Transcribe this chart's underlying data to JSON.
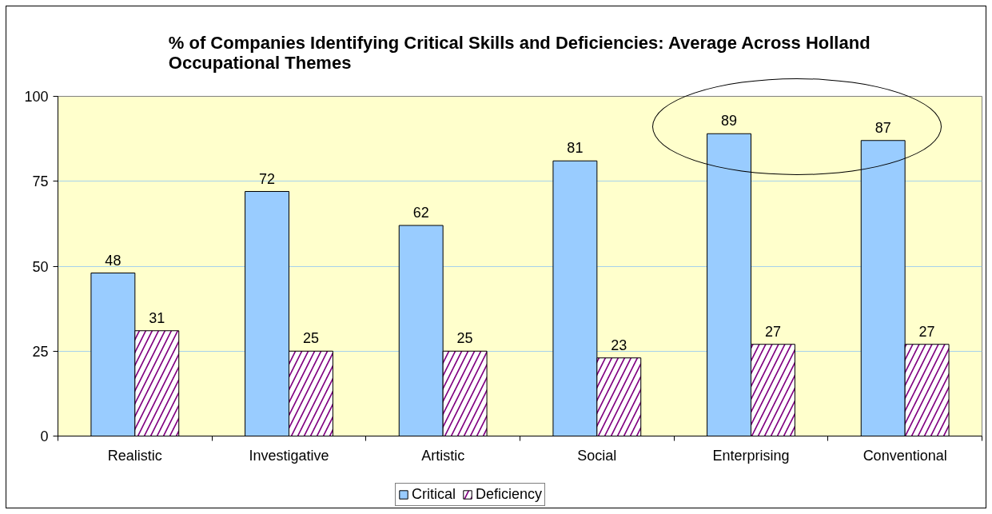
{
  "chart_data": {
    "type": "bar",
    "title": "% of Companies Identifying Critical Skills and Deficiencies: Average Across Holland Occupational Themes",
    "categories": [
      "Realistic",
      "Investigative",
      "Artistic",
      "Social",
      "Enterprising",
      "Conventional"
    ],
    "series": [
      {
        "name": "Critical",
        "color": "#99ccff",
        "values": [
          48,
          72,
          62,
          81,
          89,
          87
        ]
      },
      {
        "name": "Deficiency",
        "color": "#800080",
        "values": [
          31,
          25,
          25,
          23,
          27,
          27
        ]
      }
    ],
    "ylim": [
      0,
      100
    ],
    "yticks": [
      0,
      25,
      50,
      75,
      100
    ],
    "grid": "y",
    "legend": "bottom",
    "data_labels": true
  }
}
